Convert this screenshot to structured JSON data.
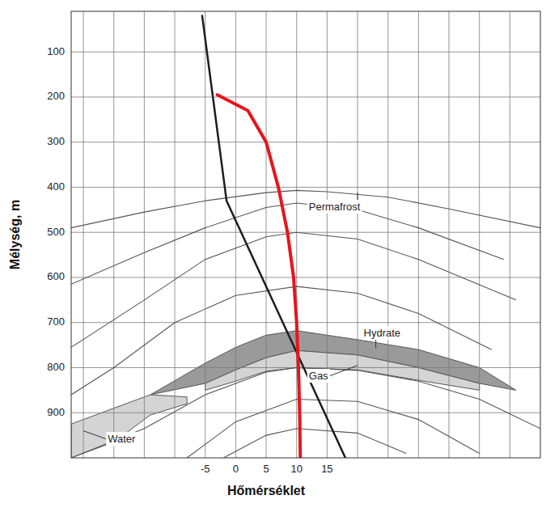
{
  "chart_data": {
    "type": "line",
    "x_label": "Hőmérséklet",
    "y_label": "Mélység, m",
    "xlim": [
      -27,
      50
    ],
    "ylim": [
      10,
      1000
    ],
    "xticks": [
      -5,
      0,
      5,
      10,
      15
    ],
    "yticks": [
      100,
      200,
      300,
      400,
      500,
      600,
      700,
      800,
      900
    ],
    "xgrid": [
      -25,
      -20,
      -15,
      -10,
      -5,
      0,
      5,
      10,
      15,
      20,
      25,
      30,
      35,
      40,
      45
    ],
    "grid": true,
    "series": [
      {
        "color": "#1e1e1e",
        "x": [
          -5.5,
          -1.5,
          18
        ],
        "values": [
          20,
          430,
          1000
        ]
      },
      {
        "color": "#e8141c",
        "x": [
          -3,
          2,
          5,
          7,
          8.5,
          9.5,
          10,
          10.3,
          10.5,
          10.6
        ],
        "values": [
          195,
          230,
          300,
          400,
          500,
          600,
          700,
          800,
          900,
          1000
        ]
      }
    ],
    "layers": [
      {
        "type": "area",
        "color": "#9a9a9a",
        "x": [
          -14,
          -5,
          0,
          5,
          10,
          20,
          30,
          40,
          46
        ],
        "y_top": [
          860,
          790,
          755,
          728,
          718,
          738,
          760,
          800,
          850
        ],
        "y_bottom": [
          860,
          835,
          805,
          778,
          762,
          772,
          800,
          835,
          850
        ]
      },
      {
        "type": "area",
        "color": "#d4d4d4",
        "x": [
          -5,
          0,
          5,
          10,
          20,
          30,
          40
        ],
        "y_top": [
          835,
          805,
          778,
          762,
          772,
          800,
          835
        ],
        "y_bottom": [
          850,
          830,
          808,
          800,
          805,
          828,
          850
        ]
      },
      {
        "type": "area",
        "color": "#d4d4d4",
        "x": [
          -27,
          -20,
          -14,
          -8
        ],
        "y_top": [
          925,
          890,
          860,
          865
        ],
        "y_bottom": [
          1000,
          965,
          905,
          880
        ]
      },
      {
        "type": "line",
        "color": "#555555",
        "x": [
          -27,
          -15,
          -5,
          5,
          10,
          15,
          25,
          35,
          50
        ],
        "y": [
          490,
          455,
          430,
          412,
          407,
          410,
          422,
          448,
          490
        ]
      },
      {
        "type": "line",
        "color": "#555555",
        "x": [
          -27,
          -15,
          -5,
          5,
          10,
          20,
          30,
          44
        ],
        "y": [
          615,
          545,
          490,
          445,
          435,
          450,
          490,
          560
        ]
      },
      {
        "type": "line",
        "color": "#555555",
        "x": [
          -27,
          -15,
          -5,
          5,
          10,
          20,
          30,
          46
        ],
        "y": [
          755,
          650,
          560,
          510,
          500,
          515,
          560,
          650
        ]
      },
      {
        "type": "line",
        "color": "#555555",
        "x": [
          -27,
          -20,
          -10,
          0,
          10,
          20,
          30,
          42
        ],
        "y": [
          860,
          800,
          700,
          640,
          620,
          635,
          680,
          760
        ]
      },
      {
        "type": "line",
        "color": "#555555",
        "x": [
          -27,
          -15,
          -5,
          5,
          10,
          20,
          30,
          40,
          50
        ],
        "y": [
          1000,
          935,
          860,
          810,
          800,
          806,
          830,
          870,
          935
        ]
      },
      {
        "type": "line",
        "color": "#555555",
        "x": [
          -8,
          0,
          10,
          20,
          30,
          40
        ],
        "y": [
          1000,
          920,
          870,
          875,
          915,
          990
        ]
      },
      {
        "type": "line",
        "color": "#555555",
        "x": [
          -2,
          5,
          10,
          20,
          28
        ],
        "y": [
          1000,
          950,
          935,
          945,
          990
        ]
      }
    ],
    "annotations": [
      {
        "text": "Permafrost",
        "x": 20,
        "y": 412,
        "text_x": 12,
        "text_y": 445
      },
      {
        "text": "Hydrate",
        "x": 23,
        "y": 757,
        "text_x": 21,
        "text_y": 725
      },
      {
        "text": "Gas",
        "x": 20,
        "y": 795,
        "text_x": 12,
        "text_y": 820
      },
      {
        "text": "Water",
        "x": -25,
        "y": 940,
        "text_x": -21,
        "text_y": 960
      }
    ]
  }
}
